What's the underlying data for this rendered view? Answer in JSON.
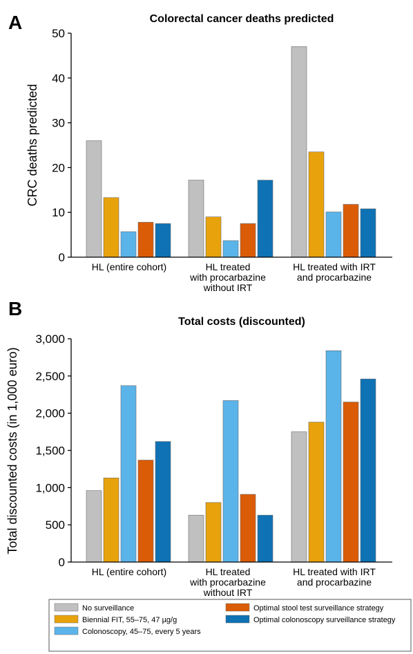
{
  "panels": [
    {
      "letter": "A",
      "chart_index": 0
    },
    {
      "letter": "B",
      "chart_index": 1
    }
  ],
  "series_colors": [
    "#c0c0c0",
    "#e8a20c",
    "#5ab4ea",
    "#db5c07",
    "#0e72b4"
  ],
  "chart_data": [
    {
      "type": "bar",
      "title": "Colorectal cancer deaths predicted",
      "ylabel": "CRC deaths predicted",
      "xlabel": "",
      "categories": [
        [
          "HL (entire cohort)"
        ],
        [
          "HL treated",
          "with procarbazine",
          "without IRT"
        ],
        [
          "HL treated with IRT",
          "and procarbazine"
        ]
      ],
      "ylim": [
        0,
        50
      ],
      "yticks": [
        0,
        10,
        20,
        30,
        40,
        50
      ],
      "ytick_labels": [
        "0",
        "10",
        "20",
        "30",
        "40",
        "50"
      ],
      "grid": false,
      "series": [
        {
          "name": "No surveillance",
          "values": [
            26,
            17.2,
            47
          ]
        },
        {
          "name": "Biennial FIT, 55–75, 47 µg/g",
          "values": [
            13.3,
            9,
            23.5
          ]
        },
        {
          "name": "Colonoscopy, 45–75, every 5 years",
          "values": [
            5.7,
            3.7,
            10.1
          ]
        },
        {
          "name": "Optimal stool test surveillance strategy",
          "values": [
            7.8,
            7.5,
            11.8
          ]
        },
        {
          "name": "Optimal colonoscopy surveillance strategy",
          "values": [
            7.5,
            17.2,
            10.8
          ]
        }
      ]
    },
    {
      "type": "bar",
      "title": "Total costs (discounted)",
      "ylabel": "Total discounted costs (in 1,000 euro)",
      "xlabel": "",
      "categories": [
        [
          "HL (entire cohort)"
        ],
        [
          "HL treated",
          "with procarbazine",
          "without IRT"
        ],
        [
          "HL treated with IRT",
          "and procarbazine"
        ]
      ],
      "ylim": [
        0,
        3000
      ],
      "yticks": [
        0,
        500,
        1000,
        1500,
        2000,
        2500,
        3000
      ],
      "ytick_labels": [
        "0",
        "500",
        "1,000",
        "1,500",
        "2,000",
        "2,500",
        "3,000"
      ],
      "grid": false,
      "series": [
        {
          "name": "No surveillance",
          "values": [
            960,
            630,
            1750
          ]
        },
        {
          "name": "Biennial FIT, 55–75, 47 µg/g",
          "values": [
            1130,
            800,
            1880
          ]
        },
        {
          "name": "Colonoscopy, 45–75, every 5 years",
          "values": [
            2370,
            2170,
            2840
          ]
        },
        {
          "name": "Optimal stool test surveillance strategy",
          "values": [
            1370,
            910,
            2150
          ]
        },
        {
          "name": "Optimal colonoscopy surveillance strategy",
          "values": [
            1620,
            630,
            2460
          ]
        }
      ]
    }
  ],
  "legend": {
    "placement": "bottom",
    "items": [
      "No surveillance",
      "Biennial FIT, 55–75, 47 µg/g",
      "Colonoscopy, 45–75, every 5 years",
      "Optimal stool test surveillance strategy",
      "Optimal colonoscopy surveillance strategy"
    ]
  }
}
